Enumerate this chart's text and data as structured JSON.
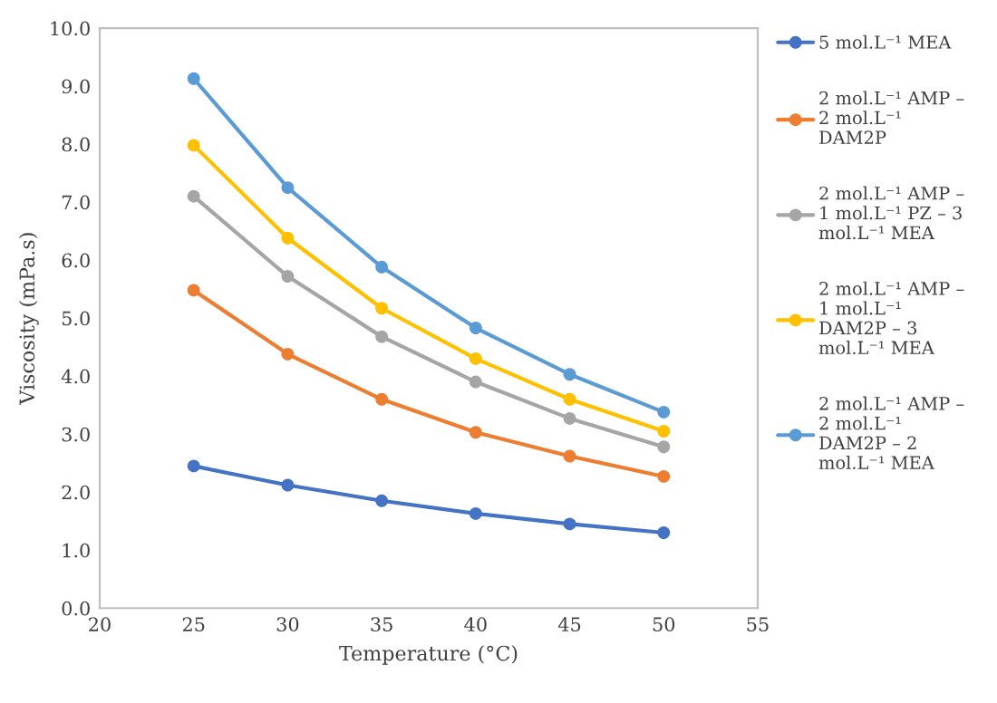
{
  "chart_data": {
    "type": "line",
    "xlabel": "Temperature (°C)",
    "ylabel": "Viscosity (mPa.s)",
    "x": [
      25,
      30,
      35,
      40,
      45,
      50
    ],
    "series": [
      {
        "name": "5 mol.L⁻¹ MEA",
        "color": "#4472c4",
        "values": [
          2.45,
          2.12,
          1.85,
          1.63,
          1.45,
          1.3
        ]
      },
      {
        "name": "2 mol.L⁻¹ AMP –\n2 mol.L⁻¹\nDAM2P",
        "color": "#ed7d31",
        "values": [
          5.48,
          4.38,
          3.6,
          3.03,
          2.62,
          2.27
        ]
      },
      {
        "name": "2 mol.L⁻¹ AMP –\n1 mol.L⁻¹ PZ – 3\nmol.L⁻¹ MEA",
        "color": "#a5a5a5",
        "values": [
          7.1,
          5.72,
          4.68,
          3.9,
          3.27,
          2.78
        ]
      },
      {
        "name": "2 mol.L⁻¹ AMP –\n1 mol.L⁻¹\nDAM2P – 3\nmol.L⁻¹ MEA",
        "color": "#ffc000",
        "values": [
          7.98,
          6.38,
          5.17,
          4.3,
          3.6,
          3.05
        ]
      },
      {
        "name": "2 mol.L⁻¹ AMP –\n2 mol.L⁻¹\nDAM2P – 2\nmol.L⁻¹ MEA",
        "color": "#5b9bd5",
        "values": [
          9.13,
          7.25,
          5.88,
          4.83,
          4.03,
          3.38
        ]
      }
    ],
    "xlim": [
      20,
      55
    ],
    "xticks": [
      20,
      25,
      30,
      35,
      40,
      45,
      50,
      55
    ],
    "ylim": [
      0,
      10
    ],
    "yticks": [
      {
        "value": 0,
        "label": "0.0"
      },
      {
        "value": 1,
        "label": "1.0"
      },
      {
        "value": 2,
        "label": "2.0"
      },
      {
        "value": 3,
        "label": "3.0"
      },
      {
        "value": 4,
        "label": "4.0"
      },
      {
        "value": 5,
        "label": "5.0"
      },
      {
        "value": 6,
        "label": "6.0"
      },
      {
        "value": 7,
        "label": "7.0"
      },
      {
        "value": 8,
        "label": "8.0"
      },
      {
        "value": 9,
        "label": "9.0"
      },
      {
        "value": 10,
        "label": "10.0"
      }
    ],
    "marker": "circle",
    "line_style": "solid",
    "grid": false,
    "legend": "right"
  }
}
